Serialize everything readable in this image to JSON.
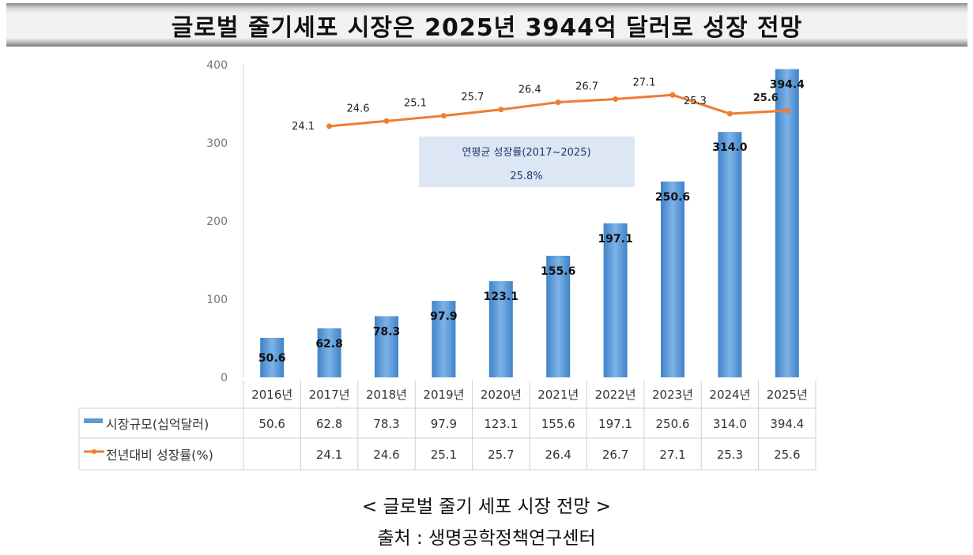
{
  "title": "글로벌 줄기세포 시장은 2025년 3944억 달러로 성장 전망",
  "chart_data": {
    "type": "bar",
    "categories": [
      "2016년",
      "2017년",
      "2018년",
      "2019년",
      "2020년",
      "2021년",
      "2022년",
      "2023년",
      "2024년",
      "2025년"
    ],
    "series": [
      {
        "name": "시장규모(십억달러)",
        "type": "bar",
        "color": "#5b9bd5",
        "values": [
          50.6,
          62.8,
          78.3,
          97.9,
          123.1,
          155.6,
          197.1,
          250.6,
          314.0,
          394.4
        ],
        "labels": [
          "50.6",
          "62.8",
          "78.3",
          "97.9",
          "123.1",
          "155.6",
          "197.1",
          "250.6",
          "314.0",
          "394.4"
        ]
      },
      {
        "name": "전년대비 성장률(%)",
        "type": "line",
        "axis": "secondary",
        "color": "#ed7d31",
        "values": [
          null,
          24.1,
          24.6,
          25.1,
          25.7,
          26.4,
          26.7,
          27.1,
          25.3,
          25.6
        ],
        "labels": [
          "",
          "24.1",
          "24.6",
          "25.1",
          "25.7",
          "26.4",
          "26.7",
          "27.1",
          "25.3",
          "25.6"
        ]
      }
    ],
    "y_ticks": [
      "0",
      "100",
      "200",
      "300",
      "400"
    ],
    "ylim": [
      0,
      400
    ],
    "y2lim": [
      0,
      30
    ],
    "annotation": {
      "title": "연평균 성장률(2017~2025)",
      "value": "25.8%"
    },
    "legend": "data-table-bottom"
  },
  "caption": {
    "line1": "< 글로벌 줄기  세포 시장 전망 >",
    "line2": "출처 : 생명공학정책연구센터"
  }
}
